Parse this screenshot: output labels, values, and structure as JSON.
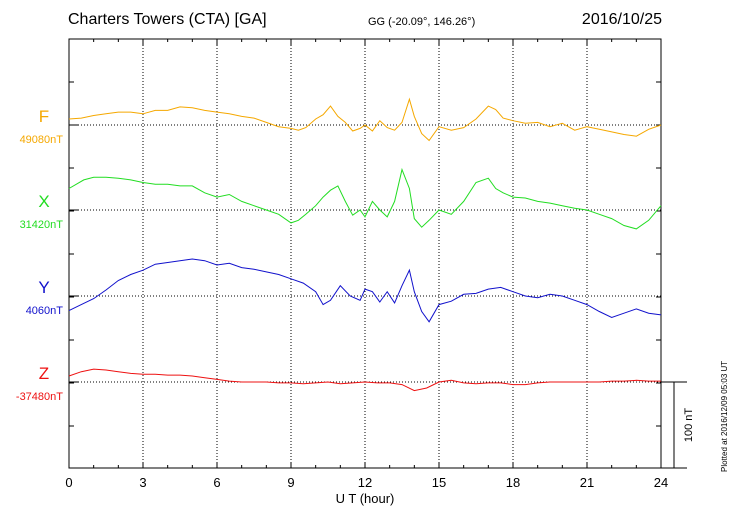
{
  "header": {
    "title": "Charters Towers (CTA)  [GA]",
    "coords": "GG (-20.09°, 146.26°)",
    "date": "2016/10/25"
  },
  "plotted_note": "Plotted at 2016/12/09 05:03 UT",
  "scale_bar_label": "100 nT",
  "chart_data": {
    "type": "line",
    "xlabel": "U T (hour)",
    "xlim": [
      0,
      24
    ],
    "xticks": [
      "0",
      "3",
      "6",
      "9",
      "12",
      "15",
      "18",
      "21",
      "24"
    ],
    "grid": true,
    "scale_nT": 100,
    "series": [
      {
        "name": "F",
        "baseline": "49080nT",
        "color": "#f5a800",
        "x": [
          0,
          0.5,
          1,
          1.5,
          2,
          2.5,
          3,
          3.5,
          4,
          4.5,
          5,
          5.5,
          6,
          6.5,
          7,
          7.5,
          8,
          8.5,
          9,
          9.3,
          9.6,
          10,
          10.3,
          10.6,
          10.9,
          11.2,
          11.5,
          11.8,
          12,
          12.3,
          12.6,
          12.9,
          13.2,
          13.5,
          13.8,
          14,
          14.3,
          14.6,
          15,
          15.5,
          16,
          16.5,
          17,
          17.3,
          17.6,
          18,
          18.5,
          19,
          19.5,
          20,
          20.5,
          21,
          21.5,
          22,
          22.5,
          23,
          23.5,
          24
        ],
        "y": [
          7,
          8,
          11,
          13,
          15,
          15,
          13,
          17,
          17,
          21,
          20,
          17,
          15,
          13,
          10,
          8,
          3,
          -2,
          -4,
          -6,
          -3,
          7,
          12,
          22,
          10,
          3,
          -7,
          -4,
          0,
          -7,
          5,
          -3,
          -6,
          3,
          30,
          10,
          -10,
          -18,
          -2,
          -6,
          -3,
          7,
          22,
          18,
          8,
          5,
          2,
          3,
          -2,
          2,
          -6,
          -2,
          -5,
          -8,
          -11,
          -13,
          -5,
          0
        ]
      },
      {
        "name": "X",
        "baseline": "31420nT",
        "color": "#22dd22",
        "x": [
          0,
          0.3,
          0.6,
          1,
          1.5,
          2,
          2.5,
          3,
          3.5,
          4,
          4.5,
          5,
          5.5,
          6,
          6.5,
          7,
          7.5,
          8,
          8.5,
          9,
          9.3,
          9.6,
          10,
          10.3,
          10.6,
          10.9,
          11.2,
          11.5,
          11.8,
          12,
          12.3,
          12.6,
          12.9,
          13.2,
          13.5,
          13.8,
          14,
          14.3,
          14.6,
          15,
          15.5,
          16,
          16.5,
          17,
          17.3,
          17.6,
          18,
          18.5,
          19,
          19.5,
          20,
          20.5,
          21,
          21.5,
          22,
          22.5,
          23,
          23.5,
          24
        ],
        "y": [
          25,
          30,
          35,
          38,
          38,
          37,
          35,
          32,
          30,
          30,
          28,
          28,
          20,
          15,
          18,
          10,
          5,
          0,
          -5,
          -15,
          -12,
          -5,
          5,
          15,
          23,
          28,
          10,
          -6,
          0,
          -8,
          10,
          0,
          -8,
          10,
          47,
          25,
          -10,
          -20,
          -12,
          0,
          -5,
          10,
          32,
          37,
          25,
          20,
          15,
          14,
          10,
          8,
          5,
          2,
          0,
          -5,
          -10,
          -18,
          -22,
          -12,
          5
        ]
      },
      {
        "name": "Y",
        "baseline": "4060nT",
        "color": "#1111cc",
        "x": [
          0,
          0.5,
          1,
          1.5,
          2,
          2.5,
          3,
          3.5,
          4,
          4.5,
          5,
          5.5,
          6,
          6.5,
          7,
          7.5,
          8,
          8.5,
          9,
          9.5,
          10,
          10.3,
          10.6,
          11,
          11.4,
          11.8,
          12,
          12.3,
          12.6,
          12.9,
          13.2,
          13.5,
          13.8,
          14,
          14.3,
          14.6,
          15,
          15.5,
          16,
          16.5,
          17,
          17.5,
          18,
          18.5,
          19,
          19.5,
          20,
          20.5,
          21,
          21.5,
          22,
          22.5,
          23,
          23.5,
          24
        ],
        "y": [
          -17,
          -10,
          -3,
          7,
          18,
          25,
          30,
          37,
          39,
          41,
          43,
          41,
          36,
          38,
          33,
          31,
          28,
          25,
          20,
          15,
          5,
          -10,
          -5,
          12,
          0,
          -5,
          8,
          5,
          -7,
          5,
          -8,
          12,
          30,
          5,
          -18,
          -30,
          -10,
          -6,
          2,
          3,
          8,
          10,
          5,
          0,
          -2,
          2,
          0,
          -5,
          -10,
          -18,
          -25,
          -20,
          -15,
          -20,
          -22
        ]
      },
      {
        "name": "Z",
        "baseline": "-37480nT",
        "color": "#ee1111",
        "x": [
          0,
          0.5,
          1,
          1.5,
          2,
          2.5,
          3,
          3.5,
          4,
          4.5,
          5,
          5.5,
          6,
          6.5,
          7,
          7.5,
          8,
          8.5,
          9,
          9.5,
          10,
          10.5,
          11,
          11.5,
          12,
          12.5,
          13,
          13.5,
          14,
          14.5,
          15,
          15.5,
          16,
          16.5,
          17,
          17.5,
          18,
          18.5,
          19,
          19.5,
          20,
          20.5,
          21,
          21.5,
          22,
          22.5,
          23,
          23.5,
          24
        ],
        "y": [
          7,
          12,
          15,
          14,
          12,
          10,
          9,
          9,
          8,
          8,
          7,
          5,
          3,
          1,
          0,
          0,
          0,
          -1,
          -1,
          -2,
          -1,
          0,
          -2,
          -1,
          0,
          -1,
          -1,
          -3,
          -10,
          -7,
          0,
          2,
          -1,
          -2,
          -1,
          -1,
          -3,
          -3,
          -1,
          0,
          0,
          0,
          0,
          0,
          1,
          1,
          2,
          1,
          1
        ]
      }
    ]
  }
}
